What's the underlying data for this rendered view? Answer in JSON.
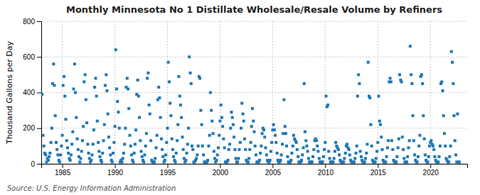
{
  "chart_data": {
    "type": "scatter",
    "title": "Monthly Minnesota No 1 Distillate Wholesale/Resale Volume by Refiners",
    "ylabel": "Thousand Gallons per Day",
    "annotations": [
      "Source: U.S. Energy Information Administration"
    ],
    "marker": "square",
    "grid": true,
    "xlim": [
      1983.0,
      2023.5
    ],
    "ylim": [
      0,
      800
    ],
    "xticks": [
      1985,
      1990,
      1995,
      2000,
      2005,
      2010,
      2015,
      2020
    ],
    "yticks": [
      0,
      200,
      400,
      600,
      800
    ],
    "x": [
      1983.08,
      1983.17,
      1983.25,
      1983.33,
      1983.42,
      1983.5,
      1983.58,
      1983.67,
      1983.75,
      1983.83,
      1983.92,
      1984,
      1984.08,
      1984.17,
      1984.25,
      1984.33,
      1984.42,
      1984.5,
      1984.58,
      1984.67,
      1984.75,
      1984.83,
      1984.92,
      1985,
      1985.08,
      1985.17,
      1985.25,
      1985.33,
      1985.42,
      1985.5,
      1985.58,
      1985.67,
      1985.75,
      1985.83,
      1985.92,
      1986,
      1986.08,
      1986.17,
      1986.25,
      1986.33,
      1986.42,
      1986.5,
      1986.58,
      1986.67,
      1986.75,
      1986.83,
      1986.92,
      1987,
      1987.08,
      1987.17,
      1987.25,
      1987.33,
      1987.42,
      1987.5,
      1987.58,
      1987.67,
      1987.75,
      1987.83,
      1987.92,
      1988,
      1988.08,
      1988.17,
      1988.25,
      1988.33,
      1988.42,
      1988.5,
      1988.58,
      1988.67,
      1988.75,
      1988.83,
      1988.92,
      1989,
      1989.08,
      1989.17,
      1989.25,
      1989.33,
      1989.42,
      1989.5,
      1989.58,
      1989.67,
      1989.75,
      1989.83,
      1989.92,
      1990,
      1990.08,
      1990.17,
      1990.25,
      1990.33,
      1990.42,
      1990.5,
      1990.58,
      1990.67,
      1990.75,
      1990.83,
      1990.92,
      1991,
      1991.08,
      1991.17,
      1991.25,
      1991.33,
      1991.42,
      1991.5,
      1991.58,
      1991.67,
      1991.75,
      1991.83,
      1991.92,
      1992,
      1992.08,
      1992.17,
      1992.25,
      1992.33,
      1992.42,
      1992.5,
      1992.58,
      1992.67,
      1992.75,
      1992.83,
      1992.92,
      1993,
      1993.08,
      1993.17,
      1993.25,
      1993.33,
      1993.42,
      1993.5,
      1993.58,
      1993.67,
      1993.75,
      1993.83,
      1993.92,
      1994,
      1994.08,
      1994.17,
      1994.25,
      1994.33,
      1994.42,
      1994.5,
      1994.58,
      1994.67,
      1994.75,
      1994.83,
      1994.92,
      1995,
      1995.08,
      1995.17,
      1995.25,
      1995.33,
      1995.42,
      1995.5,
      1995.58,
      1995.67,
      1995.75,
      1995.83,
      1995.92,
      1996,
      1996.08,
      1996.17,
      1996.25,
      1996.33,
      1996.42,
      1996.5,
      1996.58,
      1996.67,
      1996.75,
      1996.83,
      1996.92,
      1997,
      1997.08,
      1997.17,
      1997.25,
      1997.33,
      1997.42,
      1997.5,
      1997.58,
      1997.67,
      1997.75,
      1997.83,
      1997.92,
      1998,
      1998.08,
      1998.17,
      1998.25,
      1998.33,
      1998.42,
      1998.5,
      1998.58,
      1998.67,
      1998.75,
      1998.83,
      1998.92,
      1999,
      1999.08,
      1999.17,
      1999.25,
      1999.33,
      1999.42,
      1999.5,
      1999.58,
      1999.67,
      1999.75,
      1999.83,
      1999.92,
      2000,
      2000.08,
      2000.17,
      2000.25,
      2000.33,
      2000.42,
      2000.5,
      2000.58,
      2000.67,
      2000.75,
      2000.83,
      2000.92,
      2001,
      2001.08,
      2001.17,
      2001.25,
      2001.33,
      2001.42,
      2001.5,
      2001.58,
      2001.67,
      2001.75,
      2001.83,
      2001.92,
      2002,
      2002.08,
      2002.17,
      2002.25,
      2002.33,
      2002.42,
      2002.5,
      2002.58,
      2002.67,
      2002.75,
      2002.83,
      2002.92,
      2003,
      2003.08,
      2003.17,
      2003.25,
      2003.33,
      2003.42,
      2003.5,
      2003.58,
      2003.67,
      2003.75,
      2003.83,
      2003.92,
      2004,
      2004.08,
      2004.17,
      2004.25,
      2004.33,
      2004.42,
      2004.5,
      2004.58,
      2004.67,
      2004.75,
      2004.83,
      2004.92,
      2005,
      2005.08,
      2005.17,
      2005.25,
      2005.33,
      2005.42,
      2005.5,
      2005.58,
      2005.67,
      2005.75,
      2005.83,
      2005.92,
      2006,
      2006.08,
      2006.17,
      2006.25,
      2006.33,
      2006.42,
      2006.5,
      2006.58,
      2006.67,
      2006.75,
      2006.83,
      2006.92,
      2007,
      2007.08,
      2007.17,
      2007.25,
      2007.33,
      2007.42,
      2007.5,
      2007.58,
      2007.67,
      2007.75,
      2007.83,
      2007.92,
      2008,
      2008.08,
      2008.17,
      2008.25,
      2008.33,
      2008.42,
      2008.5,
      2008.58,
      2008.67,
      2008.75,
      2008.83,
      2008.92,
      2009,
      2009.08,
      2009.17,
      2009.25,
      2009.33,
      2009.42,
      2009.5,
      2009.58,
      2009.67,
      2009.75,
      2009.83,
      2009.92,
      2010,
      2010.08,
      2010.17,
      2010.25,
      2010.33,
      2010.42,
      2010.5,
      2010.58,
      2010.67,
      2010.75,
      2010.83,
      2010.92,
      2011,
      2011.08,
      2011.17,
      2011.25,
      2011.33,
      2011.42,
      2011.5,
      2011.58,
      2011.67,
      2011.75,
      2011.83,
      2011.92,
      2012,
      2012.08,
      2012.17,
      2012.25,
      2012.33,
      2012.42,
      2012.5,
      2012.58,
      2012.67,
      2012.75,
      2012.83,
      2012.92,
      2013,
      2013.08,
      2013.17,
      2013.25,
      2013.33,
      2013.42,
      2013.5,
      2013.58,
      2013.67,
      2013.75,
      2013.83,
      2013.92,
      2014,
      2014.08,
      2014.17,
      2014.25,
      2014.33,
      2014.42,
      2014.5,
      2014.58,
      2014.67,
      2014.75,
      2014.83,
      2014.92,
      2015,
      2015.08,
      2015.17,
      2015.25,
      2015.33,
      2015.42,
      2015.5,
      2015.58,
      2015.67,
      2015.75,
      2015.83,
      2015.92,
      2016,
      2016.08,
      2016.17,
      2016.25,
      2016.33,
      2016.42,
      2016.5,
      2016.58,
      2016.67,
      2016.75,
      2016.83,
      2016.92,
      2017,
      2017.08,
      2017.17,
      2017.25,
      2017.33,
      2017.42,
      2017.5,
      2017.58,
      2017.67,
      2017.75,
      2017.83,
      2017.92,
      2018,
      2018.08,
      2018.17,
      2018.25,
      2018.33,
      2018.42,
      2018.5,
      2018.58,
      2018.67,
      2018.75,
      2018.83,
      2018.92,
      2019,
      2019.08,
      2019.17,
      2019.25,
      2019.33,
      2019.42,
      2019.5,
      2019.58,
      2019.67,
      2019.75,
      2019.83,
      2019.92,
      2020,
      2020.08,
      2020.17,
      2020.25,
      2020.33,
      2020.42,
      2020.5,
      2020.58,
      2020.67,
      2020.75,
      2020.83,
      2020.92,
      2021,
      2021.08,
      2021.17,
      2021.25,
      2021.33,
      2021.42,
      2021.5,
      2021.58,
      2021.67,
      2021.75,
      2021.83,
      2021.92,
      2022,
      2022.08,
      2022.17,
      2022.25,
      2022.33,
      2022.42,
      2022.5,
      2022.58,
      2022.67,
      2022.75
    ],
    "values": [
      390,
      160,
      100,
      60,
      50,
      10,
      30,
      20,
      40,
      60,
      120,
      200,
      450,
      560,
      440,
      270,
      120,
      80,
      50,
      20,
      10,
      50,
      100,
      160,
      440,
      490,
      380,
      250,
      130,
      90,
      60,
      30,
      20,
      50,
      110,
      180,
      420,
      560,
      400,
      260,
      140,
      80,
      40,
      10,
      30,
      70,
      130,
      210,
      460,
      500,
      360,
      230,
      110,
      60,
      30,
      10,
      20,
      50,
      110,
      190,
      430,
      480,
      380,
      240,
      120,
      70,
      40,
      20,
      10,
      60,
      130,
      220,
      440,
      500,
      410,
      280,
      150,
      90,
      50,
      20,
      10,
      60,
      120,
      210,
      640,
      420,
      350,
      290,
      200,
      10,
      20,
      10,
      30,
      60,
      110,
      200,
      430,
      480,
      420,
      310,
      160,
      100,
      50,
      20,
      10,
      60,
      110,
      190,
      390,
      470,
      380,
      260,
      130,
      70,
      40,
      20,
      10,
      50,
      100,
      170,
      480,
      510,
      330,
      280,
      130,
      20,
      10,
      10,
      10,
      30,
      90,
      160,
      360,
      430,
      370,
      260,
      140,
      80,
      40,
      10,
      20,
      50,
      120,
      200,
      570,
      460,
      340,
      270,
      140,
      80,
      40,
      20,
      10,
      60,
      130,
      220,
      490,
      380,
      330,
      260,
      150,
      80,
      30,
      10,
      20,
      60,
      110,
      200,
      600,
      510,
      450,
      100,
      80,
      10,
      10,
      20,
      30,
      50,
      100,
      490,
      480,
      300,
      220,
      100,
      50,
      10,
      10,
      10,
      10,
      20,
      100,
      160,
      400,
      300,
      240,
      170,
      70,
      30,
      10,
      20,
      50,
      90,
      160,
      240,
      330,
      260,
      210,
      140,
      90,
      10,
      10,
      10,
      20,
      80,
      110,
      200,
      290,
      260,
      220,
      150,
      80,
      30,
      10,
      10,
      30,
      80,
      120,
      200,
      340,
      280,
      240,
      140,
      80,
      20,
      10,
      10,
      30,
      80,
      120,
      210,
      310,
      240,
      180,
      100,
      50,
      10,
      10,
      10,
      20,
      60,
      100,
      170,
      200,
      190,
      150,
      90,
      50,
      20,
      10,
      10,
      20,
      70,
      120,
      190,
      220,
      190,
      160,
      120,
      60,
      20,
      10,
      10,
      20,
      50,
      110,
      170,
      360,
      210,
      170,
      100,
      40,
      10,
      10,
      10,
      20,
      60,
      100,
      160,
      140,
      130,
      120,
      80,
      40,
      10,
      10,
      10,
      20,
      50,
      90,
      450,
      180,
      130,
      100,
      70,
      30,
      10,
      10,
      10,
      10,
      40,
      80,
      130,
      140,
      130,
      100,
      70,
      30,
      10,
      10,
      10,
      10,
      40,
      80,
      120,
      380,
      320,
      330,
      70,
      30,
      10,
      10,
      10,
      10,
      30,
      70,
      120,
      100,
      90,
      80,
      50,
      20,
      10,
      10,
      10,
      10,
      30,
      60,
      100,
      110,
      90,
      80,
      50,
      20,
      10,
      10,
      10,
      10,
      30,
      60,
      100,
      380,
      500,
      450,
      70,
      40,
      20,
      10,
      10,
      10,
      30,
      60,
      110,
      570,
      380,
      370,
      220,
      100,
      20,
      10,
      10,
      10,
      30,
      70,
      120,
      380,
      240,
      220,
      150,
      80,
      20,
      10,
      10,
      10,
      40,
      90,
      130,
      460,
      480,
      460,
      130,
      80,
      20,
      10,
      10,
      10,
      40,
      90,
      140,
      500,
      470,
      460,
      150,
      80,
      30,
      10,
      10,
      10,
      40,
      90,
      130,
      660,
      500,
      450,
      270,
      130,
      50,
      20,
      10,
      10,
      40,
      100,
      160,
      490,
      500,
      450,
      270,
      140,
      50,
      20,
      10,
      10,
      40,
      100,
      120,
      130,
      110,
      100,
      80,
      40,
      20,
      10,
      10,
      10,
      40,
      100,
      450,
      460,
      410,
      270,
      170,
      100,
      30,
      20,
      10,
      10,
      40,
      100,
      630,
      570,
      450,
      270,
      130,
      50,
      10,
      280,
      10,
      10
    ]
  }
}
